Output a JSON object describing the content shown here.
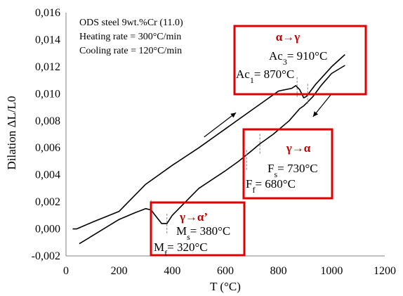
{
  "chart_data": {
    "type": "line",
    "title": "",
    "xlabel": "T (°C)",
    "ylabel": "Dilation ΔL/L0",
    "xlim": [
      0,
      1200
    ],
    "ylim": [
      -0.002,
      0.016
    ],
    "x_ticks": [
      "0",
      "200",
      "400",
      "600",
      "800",
      "1000",
      "1200"
    ],
    "y_ticks": [
      "-0,002",
      "0,000",
      "0,002",
      "0,004",
      "0,006",
      "0,008",
      "0,010",
      "0,012",
      "0,014",
      "0,016"
    ],
    "grid": false,
    "legend": "none",
    "notes": [
      "ODS steel 9wt.%Cr (11.0)",
      "Heating rate = 300°C/min",
      "Cooling rate = 120°C/min"
    ],
    "series": [
      {
        "role": "heating",
        "points": [
          [
            25,
            0.0
          ],
          [
            40,
            0.0
          ],
          [
            100,
            0.0005
          ],
          [
            200,
            0.0013
          ],
          [
            300,
            0.0033
          ],
          [
            400,
            0.0047
          ],
          [
            500,
            0.006
          ],
          [
            600,
            0.0074
          ],
          [
            700,
            0.0088
          ],
          [
            800,
            0.0102
          ],
          [
            850,
            0.0104
          ],
          [
            865,
            0.0106
          ],
          [
            880,
            0.0103
          ],
          [
            895,
            0.0097
          ],
          [
            905,
            0.0098
          ],
          [
            940,
            0.0107
          ],
          [
            1000,
            0.012
          ],
          [
            1050,
            0.0129
          ]
        ]
      },
      {
        "role": "cooling",
        "points": [
          [
            1050,
            0.0121
          ],
          [
            1000,
            0.0115
          ],
          [
            960,
            0.0106
          ],
          [
            930,
            0.0098
          ],
          [
            910,
            0.0094
          ],
          [
            895,
            0.0091
          ],
          [
            880,
            0.0089
          ],
          [
            840,
            0.008
          ],
          [
            780,
            0.007
          ],
          [
            730,
            0.0063
          ],
          [
            700,
            0.0058
          ],
          [
            650,
            0.005
          ],
          [
            600,
            0.0043
          ],
          [
            500,
            0.003
          ],
          [
            450,
            0.002
          ],
          [
            400,
            0.001
          ],
          [
            380,
            0.0004
          ],
          [
            360,
            0.0004
          ],
          [
            340,
            0.0009
          ],
          [
            320,
            0.0014
          ],
          [
            300,
            0.0015
          ],
          [
            260,
            0.0012
          ],
          [
            200,
            0.0007
          ],
          [
            150,
            0.0001
          ],
          [
            100,
            -0.0005
          ],
          [
            50,
            -0.0011
          ]
        ]
      }
    ],
    "markers": [
      {
        "name": "Ac1",
        "x": 870,
        "y": 0.0105
      },
      {
        "name": "Ac3",
        "x": 910,
        "y": 0.01
      },
      {
        "name": "Fs",
        "x": 730,
        "y": 0.0063
      },
      {
        "name": "Ff",
        "x": 680,
        "y": 0.0051
      },
      {
        "name": "Ms",
        "x": 380,
        "y": 0.0004
      },
      {
        "name": "Mf",
        "x": 320,
        "y": 0.0014
      }
    ],
    "arrows": [
      {
        "direction": "heating",
        "from": [
          520,
          0.0068
        ],
        "to": [
          640,
          0.0086
        ]
      },
      {
        "direction": "cooling",
        "from": [
          1000,
          0.01
        ],
        "to": [
          930,
          0.0083
        ]
      }
    ],
    "annotations": [
      {
        "title": "α→γ",
        "lines": [
          {
            "main": "Ac",
            "sub": "3",
            "rest": "= 910°C"
          },
          {
            "main": "Ac",
            "sub": "1",
            "rest": "= 870°C"
          }
        ],
        "border_color": "#e00000"
      },
      {
        "title": "γ→α",
        "lines": [
          {
            "main": "F",
            "sub": "s",
            "rest": "= 730°C"
          },
          {
            "main": "F",
            "sub": "f",
            "rest": "= 680°C"
          }
        ],
        "border_color": "#e00000"
      },
      {
        "title": "γ→α’",
        "lines": [
          {
            "main": "M",
            "sub": "s",
            "rest": "= 380°C"
          },
          {
            "main": "M",
            "sub": "f",
            "rest": "= 320°C"
          }
        ],
        "border_color": "#e00000"
      }
    ],
    "line_color": "#000000",
    "marker_color": "#808080",
    "title_color": "#c00000"
  }
}
